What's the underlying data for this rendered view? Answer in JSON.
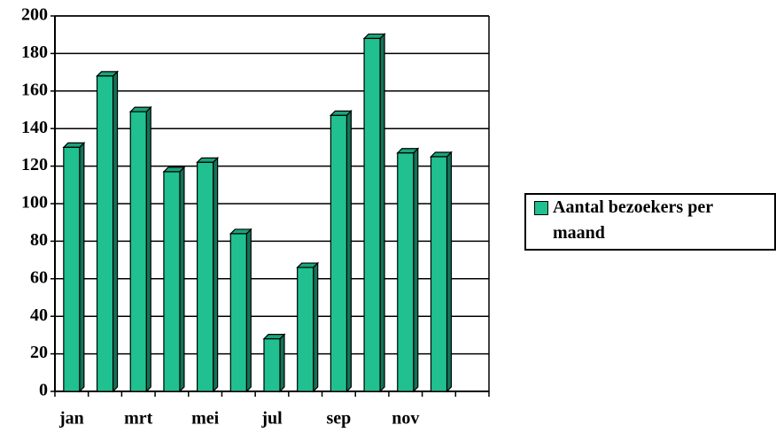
{
  "chart_data": {
    "type": "bar",
    "categories": [
      "jan",
      null,
      "mrt",
      null,
      "mei",
      null,
      "jul",
      null,
      "sep",
      null,
      "nov",
      null,
      null
    ],
    "series": [
      {
        "name": "Aantal bezoekers per maand",
        "color": "#20c090",
        "values": [
          130,
          168,
          149,
          117,
          122,
          84,
          28,
          66,
          147,
          188,
          127,
          125,
          null
        ]
      }
    ],
    "ylim": [
      0,
      200
    ],
    "yticks": [
      0,
      20,
      40,
      60,
      80,
      100,
      120,
      140,
      160,
      180,
      200
    ],
    "grid": true,
    "legend": "right"
  }
}
